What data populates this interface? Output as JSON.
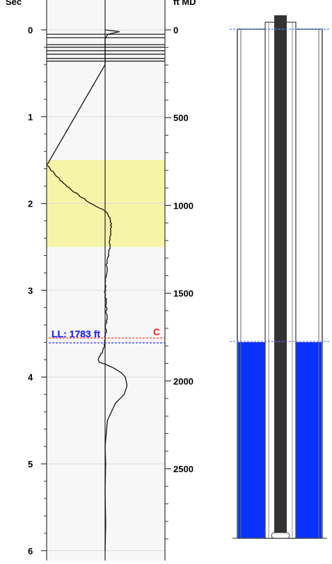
{
  "chart_data": {
    "type": "line",
    "left_axis": {
      "unit_label": "Sec",
      "range": [
        0,
        6
      ],
      "tick_labels": [
        "0",
        "1",
        "2",
        "3",
        "4",
        "5",
        "6"
      ]
    },
    "right_axis": {
      "unit_label": "ft MD",
      "range": [
        0,
        3000
      ],
      "tick_labels": [
        "0",
        "500",
        "1000",
        "1500",
        "2000",
        "2500"
      ]
    },
    "highlight_band_sec": [
      1.5,
      2.5
    ],
    "highlight_color": "#f6f4a6",
    "early_reflection_lines_sec": [
      0.05,
      0.09,
      0.17,
      0.2,
      0.24,
      0.28,
      0.33,
      0.36
    ],
    "trace": {
      "baseline": 0,
      "points": [
        [
          0.0,
          0.0
        ],
        [
          0.02,
          0.25
        ],
        [
          0.05,
          0.05
        ],
        [
          0.1,
          0.0
        ],
        [
          0.4,
          0.0
        ],
        [
          1.55,
          -1.0
        ],
        [
          1.6,
          -0.95
        ],
        [
          1.7,
          -0.82
        ],
        [
          1.8,
          -0.66
        ],
        [
          1.9,
          -0.47
        ],
        [
          2.0,
          -0.25
        ],
        [
          2.05,
          -0.1
        ],
        [
          2.1,
          0.03
        ],
        [
          2.15,
          0.07
        ],
        [
          2.2,
          0.1
        ],
        [
          2.3,
          0.1
        ],
        [
          2.4,
          0.09
        ],
        [
          2.5,
          0.08
        ],
        [
          2.7,
          0.03
        ],
        [
          3.0,
          0.0
        ],
        [
          3.3,
          0.03
        ],
        [
          3.5,
          0.01
        ],
        [
          3.6,
          0.0
        ],
        [
          3.7,
          -0.03
        ],
        [
          3.75,
          -0.08
        ],
        [
          3.8,
          -0.12
        ],
        [
          3.83,
          -0.1
        ],
        [
          3.85,
          0.0
        ],
        [
          3.9,
          0.16
        ],
        [
          3.95,
          0.28
        ],
        [
          4.0,
          0.35
        ],
        [
          4.1,
          0.38
        ],
        [
          4.2,
          0.33
        ],
        [
          4.3,
          0.18
        ],
        [
          4.5,
          0.04
        ],
        [
          4.8,
          0.0
        ],
        [
          5.0,
          0.01
        ],
        [
          5.3,
          0.0
        ],
        [
          5.7,
          0.01
        ],
        [
          6.0,
          0.0
        ]
      ]
    },
    "markers": [
      {
        "label": "C",
        "sec": 3.55,
        "color": "#ff2020"
      },
      {
        "label": "LL: 1783 ft",
        "ft": 1783,
        "color": "#2b2bff"
      }
    ]
  },
  "wellbore": {
    "liquid_level_ft": 1783,
    "liquid_color": "#0a32ff",
    "top_ft": 0,
    "bottom_ft": 2900
  }
}
